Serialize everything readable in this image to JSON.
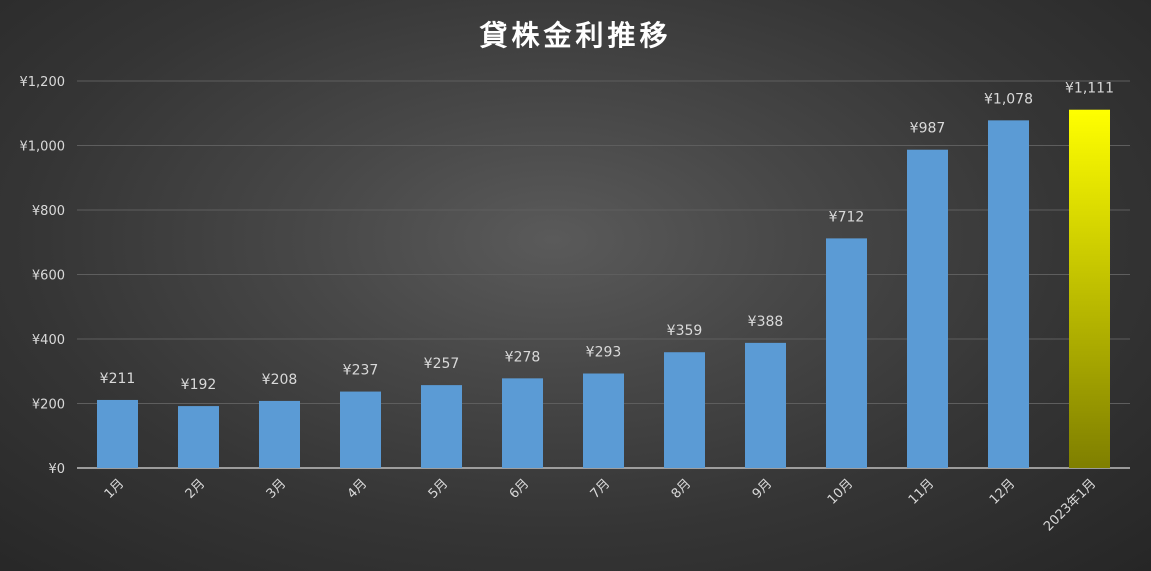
{
  "chart_data": {
    "type": "bar",
    "title": "貸株金利推移",
    "xlabel": "",
    "ylabel": "",
    "categories": [
      "1月",
      "2月",
      "3月",
      "4月",
      "5月",
      "6月",
      "7月",
      "8月",
      "9月",
      "10月",
      "11月",
      "12月",
      "2023年1月"
    ],
    "values": [
      211,
      192,
      208,
      237,
      257,
      278,
      293,
      359,
      388,
      712,
      987,
      1078,
      1111
    ],
    "value_labels": [
      "¥211",
      "¥192",
      "¥208",
      "¥237",
      "¥257",
      "¥278",
      "¥293",
      "¥359",
      "¥388",
      "¥712",
      "¥987",
      "¥1,078",
      "¥1,111"
    ],
    "ylim": [
      0,
      1200
    ],
    "yticks": [
      0,
      200,
      400,
      600,
      800,
      1000,
      1200
    ],
    "ytick_labels": [
      "¥0",
      "¥200",
      "¥400",
      "¥600",
      "¥800",
      "¥1,000",
      "¥1,200"
    ],
    "grid": true,
    "legend": "none",
    "colors": {
      "bar": "#5b9bd5",
      "highlight_top": "#ffff00",
      "highlight_bottom": "#7f7f00",
      "grid": "#5e5e5e",
      "axis": "#bfbfbf",
      "text": "#d9d9d9",
      "title": "#ffffff"
    },
    "highlight_index": 12
  }
}
